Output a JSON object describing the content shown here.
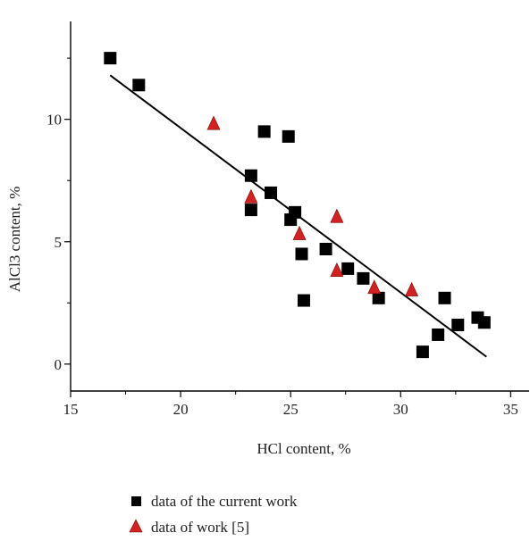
{
  "chart_data": {
    "type": "scatter",
    "title": "",
    "xlabel": "HCl content, %",
    "ylabel": "AlCl3 content, %",
    "xlim": [
      15,
      36
    ],
    "ylim": [
      -1.1,
      14
    ],
    "x_ticks": [
      15,
      20,
      25,
      30,
      35
    ],
    "y_ticks": [
      0,
      5,
      10
    ],
    "grid": false,
    "legend_position": "bottom",
    "series": [
      {
        "name": "data of the current work",
        "marker": "square",
        "color": "#000000",
        "points": [
          [
            16.8,
            12.5
          ],
          [
            18.1,
            11.4
          ],
          [
            23.2,
            7.7
          ],
          [
            23.8,
            9.5
          ],
          [
            24.1,
            7.0
          ],
          [
            24.9,
            9.3
          ],
          [
            23.2,
            6.3
          ],
          [
            25.0,
            5.9
          ],
          [
            25.2,
            6.2
          ],
          [
            25.5,
            4.5
          ],
          [
            25.6,
            2.6
          ],
          [
            26.6,
            4.7
          ],
          [
            27.6,
            3.9
          ],
          [
            28.3,
            3.5
          ],
          [
            29.0,
            2.7
          ],
          [
            31.0,
            0.5
          ],
          [
            31.7,
            1.2
          ],
          [
            32.0,
            2.7
          ],
          [
            32.6,
            1.6
          ],
          [
            33.5,
            1.9
          ],
          [
            33.8,
            1.7
          ]
        ]
      },
      {
        "name": "data of work [5]",
        "marker": "triangle",
        "color": "#d42020",
        "points": [
          [
            21.5,
            9.8
          ],
          [
            23.2,
            6.8
          ],
          [
            25.4,
            5.3
          ],
          [
            27.1,
            6.0
          ],
          [
            27.1,
            3.8
          ],
          [
            28.8,
            3.1
          ],
          [
            30.5,
            3.0
          ]
        ]
      }
    ],
    "fit_line": {
      "from": [
        16.8,
        11.8
      ],
      "to": [
        33.9,
        0.3
      ]
    }
  }
}
